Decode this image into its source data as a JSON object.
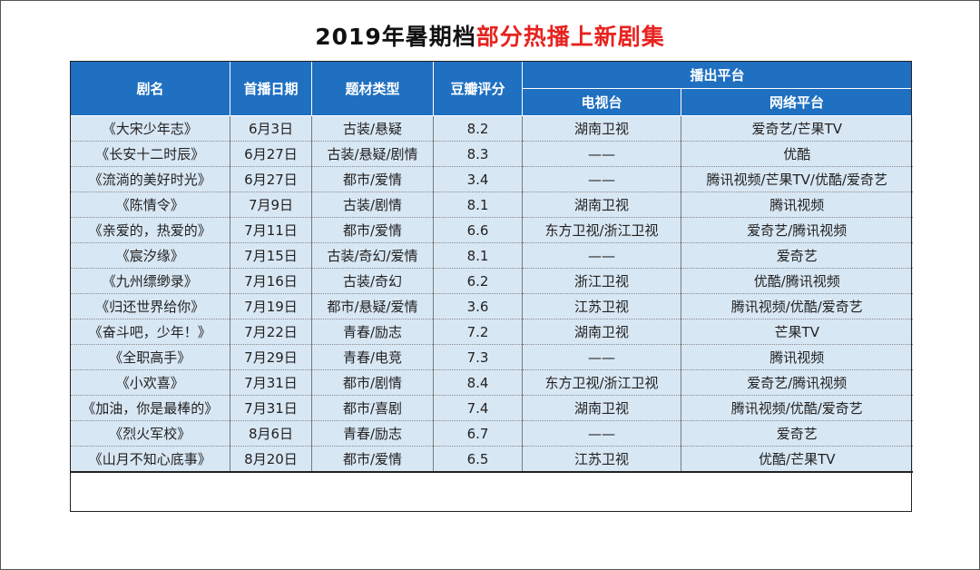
{
  "title": {
    "part1": "2019年暑期档",
    "part2": "部分热播上新剧集"
  },
  "headers": {
    "name": "剧名",
    "date": "首播日期",
    "genre": "题材类型",
    "score": "豆瓣评分",
    "platform": "播出平台",
    "tv": "电视台",
    "web": "网络平台"
  },
  "rows": [
    {
      "name": "《大宋少年志》",
      "date": "6月3日",
      "genre": "古装/悬疑",
      "score": "8.2",
      "tv": "湖南卫视",
      "web": "爱奇艺/芒果TV"
    },
    {
      "name": "《长安十二时辰》",
      "date": "6月27日",
      "genre": "古装/悬疑/剧情",
      "score": "8.3",
      "tv": "——",
      "web": "优酷"
    },
    {
      "name": "《流淌的美好时光》",
      "date": "6月27日",
      "genre": "都市/爱情",
      "score": "3.4",
      "tv": "——",
      "web": "腾讯视频/芒果TV/优酷/爱奇艺"
    },
    {
      "name": "《陈情令》",
      "date": "7月9日",
      "genre": "古装/剧情",
      "score": "8.1",
      "tv": "湖南卫视",
      "web": "腾讯视频"
    },
    {
      "name": "《亲爱的，热爱的》",
      "date": "7月11日",
      "genre": "都市/爱情",
      "score": "6.6",
      "tv": "东方卫视/浙江卫视",
      "web": "爱奇艺/腾讯视频"
    },
    {
      "name": "《宸汐缘》",
      "date": "7月15日",
      "genre": "古装/奇幻/爱情",
      "score": "8.1",
      "tv": "——",
      "web": "爱奇艺"
    },
    {
      "name": "《九州缥缈录》",
      "date": "7月16日",
      "genre": "古装/奇幻",
      "score": "6.2",
      "tv": "浙江卫视",
      "web": "优酷/腾讯视频"
    },
    {
      "name": "《归还世界给你》",
      "date": "7月19日",
      "genre": "都市/悬疑/爱情",
      "score": "3.6",
      "tv": "江苏卫视",
      "web": "腾讯视频/优酷/爱奇艺"
    },
    {
      "name": "《奋斗吧，少年！》",
      "date": "7月22日",
      "genre": "青春/励志",
      "score": "7.2",
      "tv": "湖南卫视",
      "web": "芒果TV"
    },
    {
      "name": "《全职高手》",
      "date": "7月29日",
      "genre": "青春/电竞",
      "score": "7.3",
      "tv": "——",
      "web": "腾讯视频"
    },
    {
      "name": "《小欢喜》",
      "date": "7月31日",
      "genre": "都市/剧情",
      "score": "8.4",
      "tv": "东方卫视/浙江卫视",
      "web": "爱奇艺/腾讯视频"
    },
    {
      "name": "《加油，你是最棒的》",
      "date": "7月31日",
      "genre": "都市/喜剧",
      "score": "7.4",
      "tv": "湖南卫视",
      "web": "腾讯视频/优酷/爱奇艺"
    },
    {
      "name": "《烈火军校》",
      "date": "8月6日",
      "genre": "青春/励志",
      "score": "6.7",
      "tv": "——",
      "web": "爱奇艺"
    },
    {
      "name": "《山月不知心底事》",
      "date": "8月20日",
      "genre": "都市/爱情",
      "score": "6.5",
      "tv": "江苏卫视",
      "web": "优酷/芒果TV"
    }
  ]
}
